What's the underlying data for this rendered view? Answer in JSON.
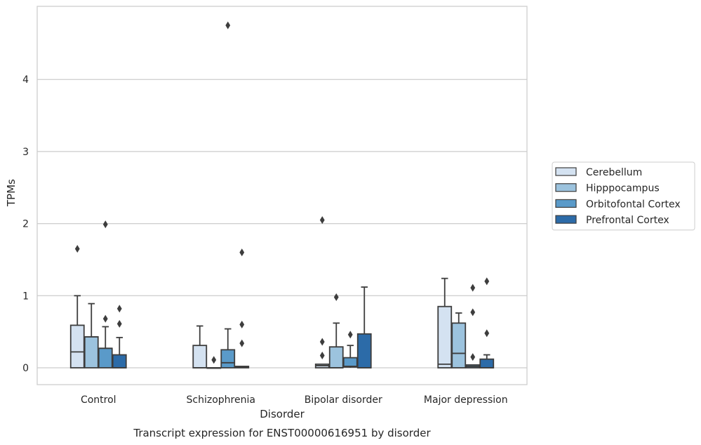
{
  "chart_data": {
    "type": "box",
    "title": "Transcript expression for ENST00000616951 by disorder",
    "xlabel": "Disorder",
    "ylabel": "TPMs",
    "ylim": [
      -0.23,
      4.98
    ],
    "yticks": [
      0,
      1,
      2,
      3,
      4
    ],
    "grid": true,
    "legend_position": "right",
    "categories": [
      "Control",
      "Schizophrenia",
      "Bipolar disorder",
      "Major depression"
    ],
    "series": [
      {
        "name": "Cerebellum",
        "color": "#d4e2f1",
        "boxes": [
          {
            "whislo": 0,
            "q1": 0,
            "med": 0.22,
            "q3": 0.59,
            "whishi": 1.0,
            "fliers": [
              1.65
            ]
          },
          {
            "whislo": 0,
            "q1": 0,
            "med": 0,
            "q3": 0.31,
            "whishi": 0.58,
            "fliers": []
          },
          {
            "whislo": 0,
            "q1": 0,
            "med": 0.03,
            "q3": 0.05,
            "whishi": 0.05,
            "fliers": [
              0.17,
              0.36,
              2.05
            ]
          },
          {
            "whislo": 0,
            "q1": 0,
            "med": 0.05,
            "q3": 0.85,
            "whishi": 1.24,
            "fliers": []
          }
        ]
      },
      {
        "name": "Hipppocampus",
        "color": "#9cc3de",
        "boxes": [
          {
            "whislo": 0,
            "q1": 0,
            "med": 0.43,
            "q3": 0.43,
            "whishi": 0.89,
            "fliers": []
          },
          {
            "whislo": 0,
            "q1": 0,
            "med": 0,
            "q3": 0,
            "whishi": 0,
            "fliers": [
              0.11
            ]
          },
          {
            "whislo": 0,
            "q1": 0,
            "med": 0,
            "q3": 0.29,
            "whishi": 0.62,
            "fliers": [
              0.98
            ]
          },
          {
            "whislo": 0,
            "q1": 0,
            "med": 0.2,
            "q3": 0.62,
            "whishi": 0.76,
            "fliers": []
          }
        ]
      },
      {
        "name": "Orbitofontal Cortex",
        "color": "#5a9ac9",
        "boxes": [
          {
            "whislo": 0,
            "q1": 0,
            "med": 0.27,
            "q3": 0.27,
            "whishi": 0.57,
            "fliers": [
              0.68,
              1.99
            ]
          },
          {
            "whislo": 0,
            "q1": 0,
            "med": 0.07,
            "q3": 0.25,
            "whishi": 0.54,
            "fliers": [
              4.75
            ]
          },
          {
            "whislo": 0,
            "q1": 0.01,
            "med": 0.02,
            "q3": 0.14,
            "whishi": 0.31,
            "fliers": [
              0.46
            ]
          },
          {
            "whislo": 0,
            "q1": 0,
            "med": 0.02,
            "q3": 0.04,
            "whishi": 0.04,
            "fliers": [
              0.15,
              0.77,
              1.11
            ]
          }
        ]
      },
      {
        "name": "Prefrontal Cortex",
        "color": "#2c6ba8",
        "boxes": [
          {
            "whislo": 0,
            "q1": 0,
            "med": 0,
            "q3": 0.18,
            "whishi": 0.42,
            "fliers": [
              0.61,
              0.82
            ]
          },
          {
            "whislo": 0,
            "q1": 0,
            "med": 0.01,
            "q3": 0.02,
            "whishi": 0.02,
            "fliers": [
              0.34,
              0.6,
              1.6
            ]
          },
          {
            "whislo": 0,
            "q1": 0,
            "med": 0,
            "q3": 0.47,
            "whishi": 1.12,
            "fliers": []
          },
          {
            "whislo": 0,
            "q1": 0,
            "med": 0,
            "q3": 0.12,
            "whishi": 0.18,
            "fliers": [
              0.48,
              1.2
            ]
          }
        ]
      }
    ]
  }
}
